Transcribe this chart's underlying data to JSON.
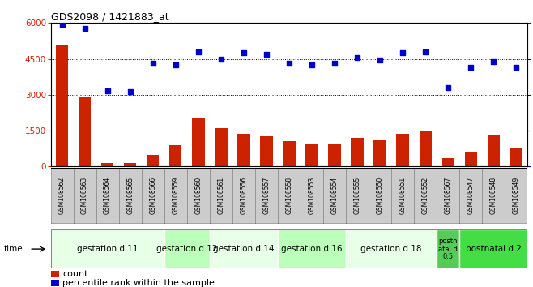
{
  "title": "GDS2098 / 1421883_at",
  "samples": [
    "GSM108562",
    "GSM108563",
    "GSM108564",
    "GSM108565",
    "GSM108566",
    "GSM108559",
    "GSM108560",
    "GSM108561",
    "GSM108556",
    "GSM108557",
    "GSM108558",
    "GSM108553",
    "GSM108554",
    "GSM108555",
    "GSM108550",
    "GSM108551",
    "GSM108552",
    "GSM108567",
    "GSM108547",
    "GSM108548",
    "GSM108549"
  ],
  "counts": [
    5100,
    2900,
    150,
    150,
    500,
    900,
    2050,
    1600,
    1350,
    1250,
    1050,
    950,
    950,
    1200,
    1100,
    1350,
    1500,
    350,
    600,
    1300,
    750
  ],
  "percentiles": [
    99,
    96,
    53,
    52,
    72,
    71,
    80,
    75,
    79,
    78,
    72,
    71,
    72,
    76,
    74,
    79,
    80,
    55,
    69,
    73,
    69
  ],
  "groups": [
    {
      "label": "gestation d 11",
      "start": 0,
      "end": 5,
      "color": "#e8ffe8"
    },
    {
      "label": "gestation d 12",
      "start": 5,
      "end": 7,
      "color": "#bbffbb"
    },
    {
      "label": "gestation d 14",
      "start": 7,
      "end": 10,
      "color": "#e8ffe8"
    },
    {
      "label": "gestation d 16",
      "start": 10,
      "end": 13,
      "color": "#bbffbb"
    },
    {
      "label": "gestation d 18",
      "start": 13,
      "end": 17,
      "color": "#e8ffe8"
    },
    {
      "label": "postn\natal d\n0.5",
      "start": 17,
      "end": 18,
      "color": "#55cc55"
    },
    {
      "label": "postnatal d 2",
      "start": 18,
      "end": 21,
      "color": "#44dd44"
    }
  ],
  "bar_color": "#cc2200",
  "dot_color": "#0000cc",
  "ylim_left": [
    0,
    6000
  ],
  "ylim_right": [
    0,
    100
  ],
  "yticks_left": [
    0,
    1500,
    3000,
    4500,
    6000
  ],
  "yticks_right": [
    0,
    25,
    50,
    75,
    100
  ],
  "grid_values": [
    1500,
    3000,
    4500
  ],
  "chart_bg": "#ffffff",
  "sample_cell_bg": "#cccccc",
  "sample_cell_border": "#888888"
}
